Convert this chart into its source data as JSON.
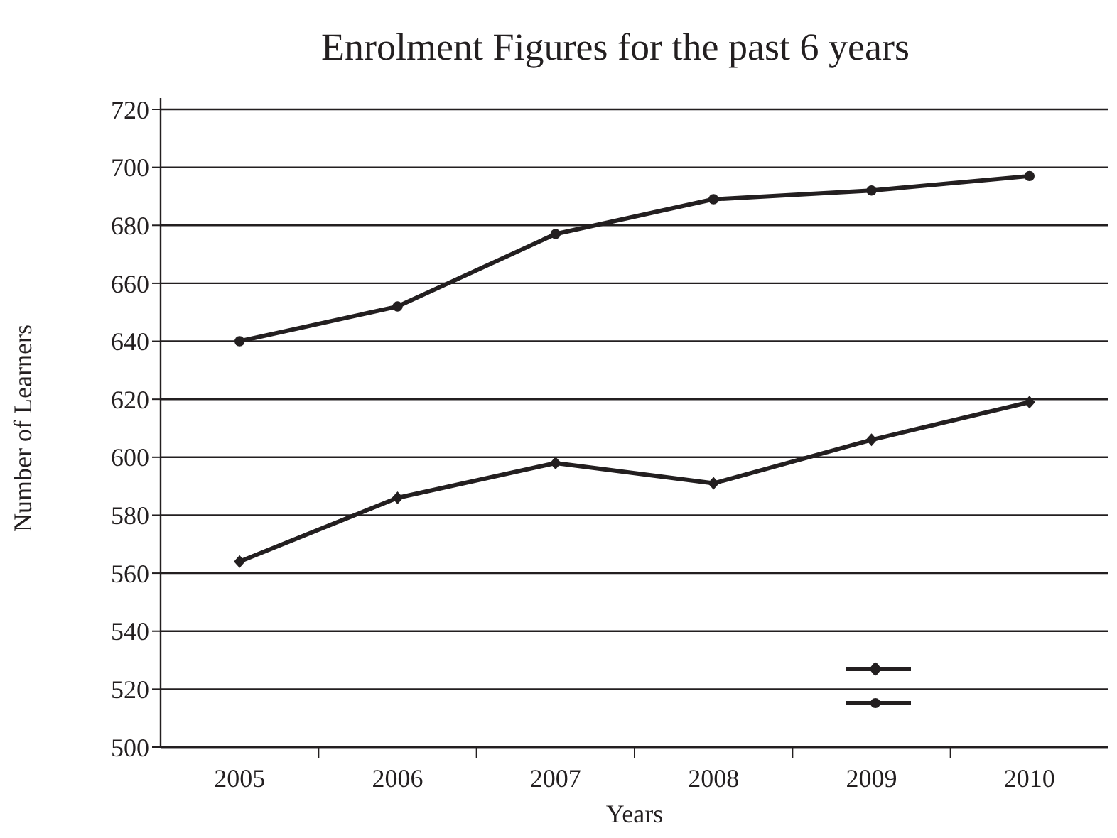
{
  "chart_data": {
    "type": "line",
    "title": "Enrolment Figures for the past 6 years",
    "xlabel": "Years",
    "ylabel": "Number of Learners",
    "categories": [
      "2005",
      "2006",
      "2007",
      "2008",
      "2009",
      "2010"
    ],
    "series": [
      {
        "color": "#231f20",
        "marker": "diamond",
        "values": [
          564,
          586,
          598,
          591,
          606,
          619
        ]
      },
      {
        "color": "#231f20",
        "marker": "circle",
        "values": [
          640,
          652,
          677,
          689,
          692,
          697
        ]
      }
    ],
    "ylim": [
      500,
      720
    ],
    "yticks": [
      500,
      520,
      540,
      560,
      580,
      600,
      620,
      640,
      660,
      680,
      700,
      720
    ],
    "grid": "y"
  }
}
